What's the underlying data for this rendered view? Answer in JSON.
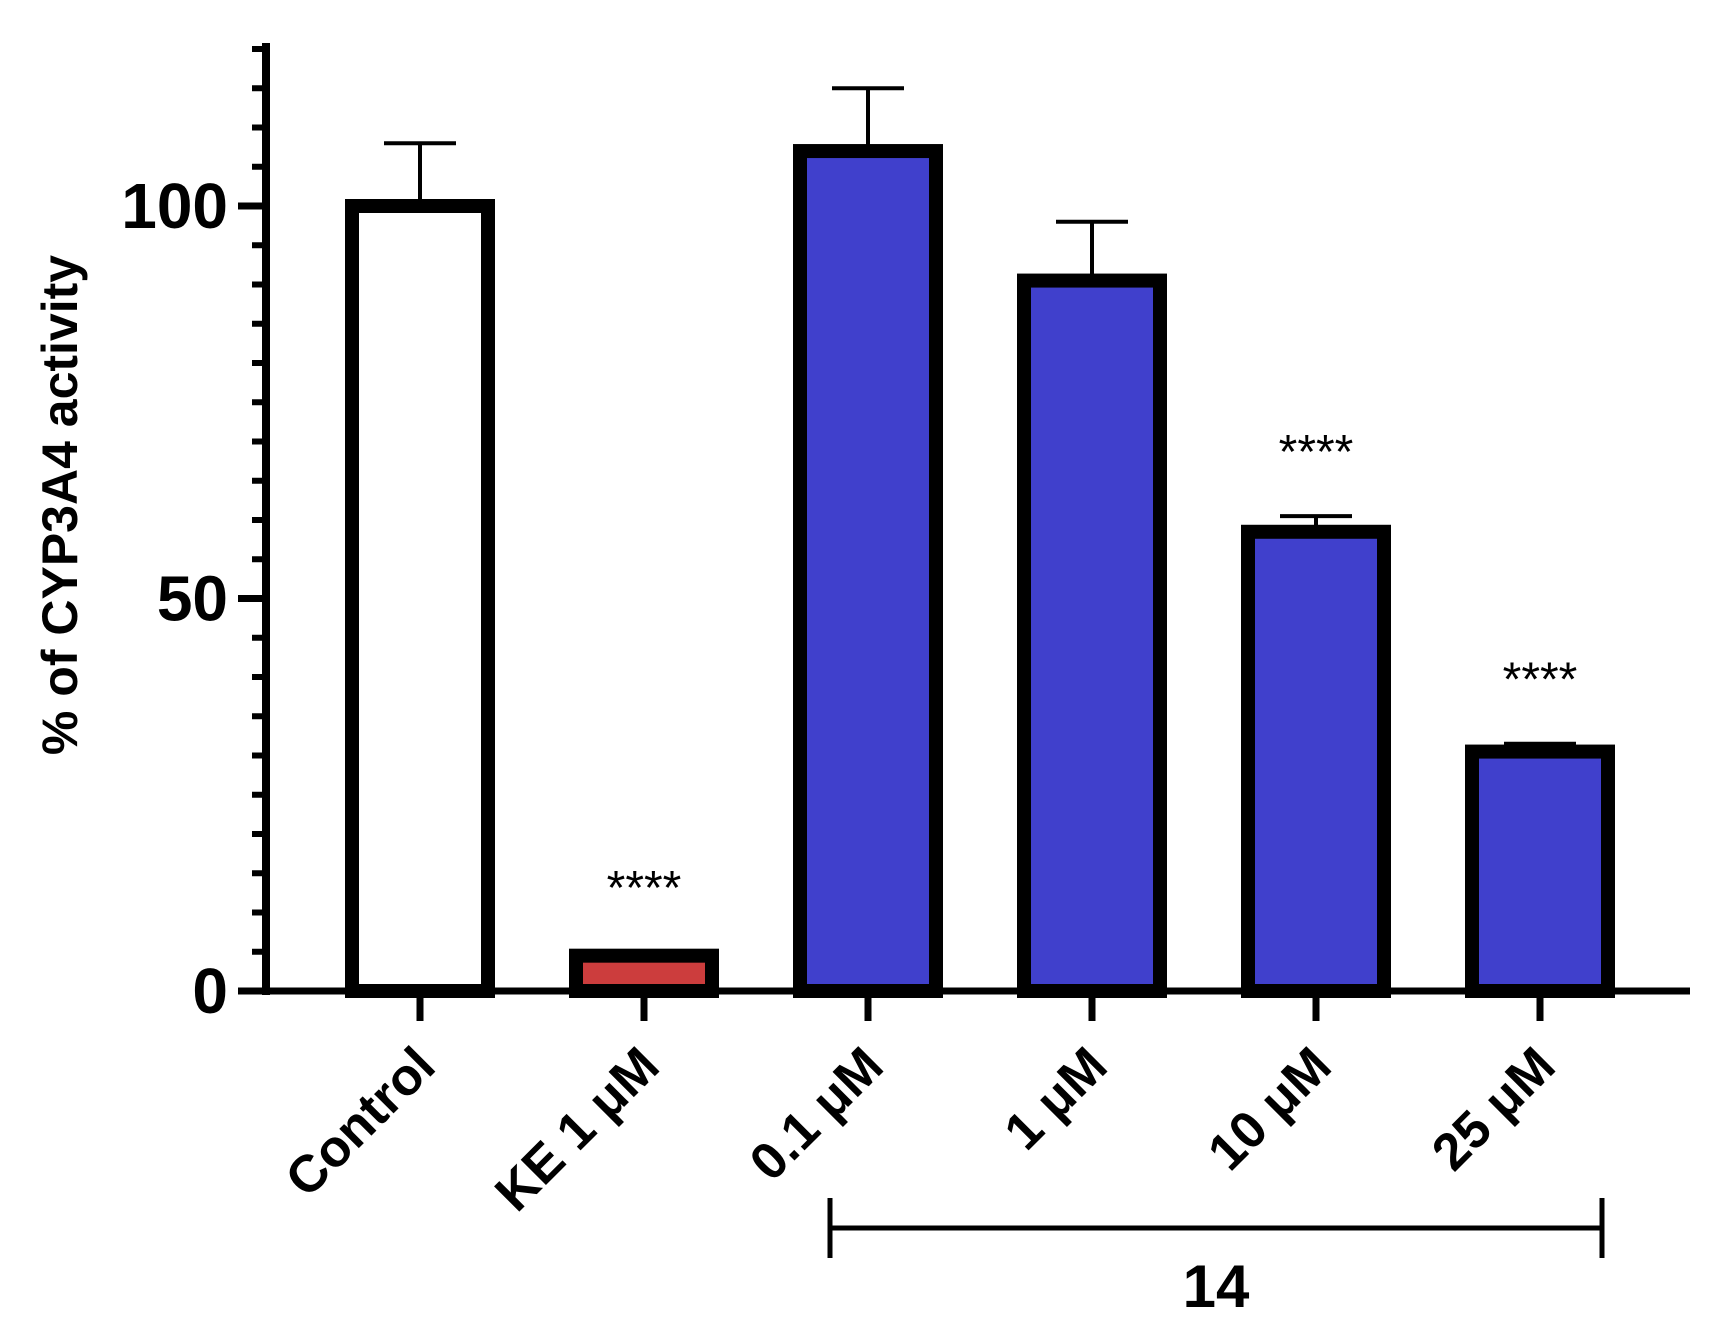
{
  "chart_data": {
    "type": "bar",
    "ylabel": "% of CYP3A4 activity",
    "ylim": [
      0,
      120
    ],
    "yticks": [
      0,
      50,
      100
    ],
    "y_minor_step": 5,
    "categories": [
      "Control",
      "KE 1 μM",
      "0.1 μM",
      "1 μM",
      "10 μM",
      "25 μM"
    ],
    "values": [
      100,
      4.5,
      107,
      90.5,
      58.5,
      30.5
    ],
    "errors": [
      8,
      0.5,
      8,
      7.5,
      2,
      1
    ],
    "colors": [
      "#ffffff",
      "#cc3d3d",
      "#4040cc",
      "#4040cc",
      "#4040cc",
      "#4040cc"
    ],
    "significance": [
      "",
      "****",
      "",
      "",
      "****",
      "****"
    ],
    "group": {
      "label": "14",
      "from_index": 2,
      "to_index": 5
    }
  }
}
